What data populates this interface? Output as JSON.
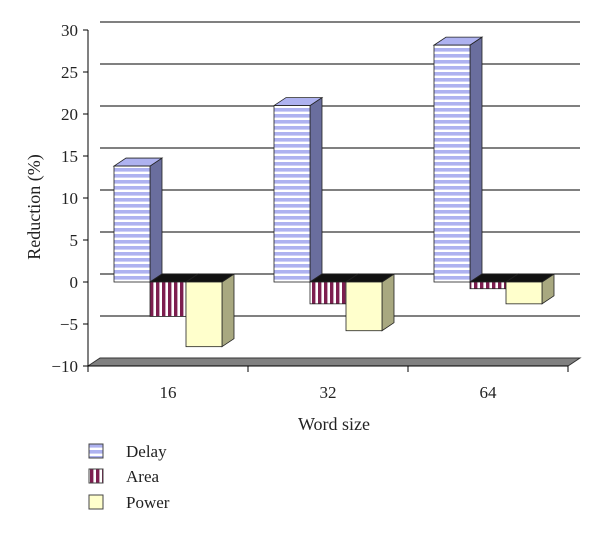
{
  "chart_data": {
    "type": "bar",
    "categories": [
      "16",
      "32",
      "64"
    ],
    "series": [
      {
        "name": "Delay",
        "values": [
          13.8,
          21.0,
          28.2
        ]
      },
      {
        "name": "Area",
        "values": [
          -4.1,
          -2.6,
          -0.8
        ]
      },
      {
        "name": "Power",
        "values": [
          -7.7,
          -5.8,
          -2.6
        ]
      }
    ],
    "xlabel": "Word size",
    "ylabel": "Reduction (%)",
    "ylim": [
      -10,
      30
    ],
    "yticks": [
      "30",
      "25",
      "20",
      "15",
      "10",
      "5",
      "0",
      "−5",
      "−10"
    ],
    "grid": true,
    "legend_position": "bottom-left",
    "colors": {
      "delay_front": "#aeb2f0",
      "delay_stripe": "#ffffff",
      "delay_side": "#6a6e9e",
      "area_front": "#7d1e4f",
      "area_stripe": "#ffffff",
      "area_side": "#4a2436",
      "power_front": "#ffffcc",
      "power_side": "#a8a880",
      "floor": "#808080",
      "gridline": "#000000"
    }
  }
}
